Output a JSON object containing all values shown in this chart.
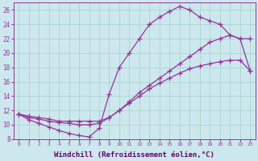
{
  "bg_color": "#cce8ee",
  "grid_color": "#aad4cc",
  "line_color": "#993399",
  "marker": "+",
  "markersize": 4,
  "linewidth": 0.9,
  "xlabel": "Windchill (Refroidissement éolien,°C)",
  "xlabel_fontsize": 6.5,
  "xlim": [
    -0.5,
    23.5
  ],
  "ylim": [
    8,
    27
  ],
  "xticks": [
    0,
    1,
    2,
    3,
    4,
    5,
    6,
    7,
    8,
    9,
    10,
    11,
    12,
    13,
    14,
    15,
    16,
    17,
    18,
    19,
    20,
    21,
    22,
    23
  ],
  "yticks": [
    8,
    10,
    12,
    14,
    16,
    18,
    20,
    22,
    24,
    26
  ],
  "line1_x": [
    0,
    1,
    2,
    3,
    4,
    5,
    6,
    7,
    8,
    9,
    10,
    11,
    12,
    13,
    14,
    15,
    16,
    17,
    18,
    19,
    20,
    21,
    22,
    23
  ],
  "line1_y": [
    11.5,
    10.7,
    10.2,
    9.7,
    9.2,
    8.8,
    8.5,
    8.3,
    9.5,
    14.3,
    18.0,
    20.0,
    22.0,
    24.0,
    25.0,
    25.8,
    26.5,
    26.0,
    25.0,
    24.5,
    24.0,
    22.5,
    22.0,
    17.5
  ],
  "line2_x": [
    0,
    1,
    2,
    3,
    4,
    5,
    6,
    7,
    8,
    9,
    10,
    11,
    12,
    13,
    14,
    15,
    16,
    17,
    18,
    19,
    20,
    21,
    22,
    23
  ],
  "line2_y": [
    11.5,
    11.2,
    11.0,
    10.8,
    10.5,
    10.5,
    10.5,
    10.5,
    10.5,
    11.0,
    12.0,
    13.2,
    14.5,
    15.5,
    16.5,
    17.5,
    18.5,
    19.5,
    20.5,
    21.5,
    22.0,
    22.5,
    22.0,
    22.0
  ],
  "line3_x": [
    0,
    1,
    2,
    3,
    4,
    5,
    6,
    7,
    8,
    9,
    10,
    11,
    12,
    13,
    14,
    15,
    16,
    17,
    18,
    19,
    20,
    21,
    22,
    23
  ],
  "line3_y": [
    11.5,
    11.0,
    10.8,
    10.5,
    10.3,
    10.2,
    10.0,
    10.0,
    10.2,
    11.0,
    12.0,
    13.0,
    14.0,
    15.0,
    15.8,
    16.5,
    17.2,
    17.8,
    18.2,
    18.5,
    18.8,
    19.0,
    19.0,
    17.5
  ]
}
